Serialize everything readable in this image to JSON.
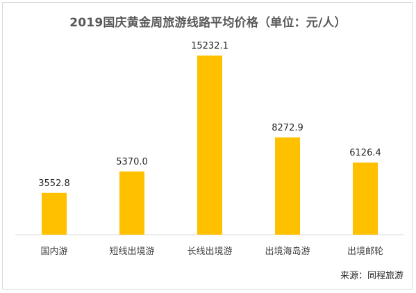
{
  "chart_data": {
    "type": "bar",
    "title": "2019国庆黄金周旅游线路平均价格（单位：元/人）",
    "categories": [
      "国内游",
      "短线出境游",
      "长线出境游",
      "出境海岛游",
      "出境邮轮"
    ],
    "values": [
      3552.8,
      5370.0,
      15232.1,
      8272.9,
      6126.4
    ],
    "value_labels": [
      "3552.8",
      "5370.0",
      "15232.1",
      "8272.9",
      "6126.4"
    ],
    "ylim": [
      0,
      16000
    ],
    "grid": false,
    "legend": "none",
    "bar_color": "#FFC000",
    "source": "来源：同程旅游"
  }
}
